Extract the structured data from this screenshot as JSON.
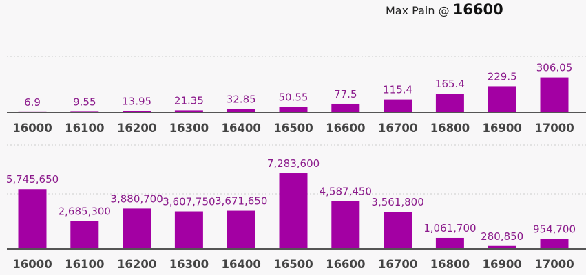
{
  "header": {
    "prefix": "Max Pain @",
    "strike": "16600"
  },
  "colors": {
    "bar": "#a300a3",
    "label": "#8b1a8b",
    "axis": "#555555",
    "grid": "#cccccc",
    "background": "#f8f7f8"
  },
  "chart_data": [
    {
      "type": "bar",
      "categories": [
        "16000",
        "16100",
        "16200",
        "16300",
        "16400",
        "16500",
        "16600",
        "16700",
        "16800",
        "16900",
        "17000"
      ],
      "values": [
        6.9,
        9.55,
        13.95,
        21.35,
        32.85,
        50.55,
        77.5,
        115.4,
        165.4,
        229.5,
        306.05
      ],
      "labels": [
        "6.9",
        "9.55",
        "13.95",
        "21.35",
        "32.85",
        "50.55",
        "77.5",
        "115.4",
        "165.4",
        "229.5",
        "306.05"
      ],
      "ylim": [
        0,
        500
      ],
      "grid": true
    },
    {
      "type": "bar",
      "categories": [
        "16000",
        "16100",
        "16200",
        "16300",
        "16400",
        "16500",
        "16600",
        "16700",
        "16800",
        "16900",
        "17000"
      ],
      "values": [
        5745650,
        2685300,
        3880700,
        3607750,
        3671650,
        7283600,
        4587450,
        3561800,
        1061700,
        280850,
        954700
      ],
      "labels": [
        "5,745,650",
        "2,685,300",
        "3,880,700",
        "3,607,750",
        "3,671,650",
        "7,283,600",
        "4,587,450",
        "3,561,800",
        "1,061,700",
        "280,850",
        "954,700"
      ],
      "ylim": [
        0,
        10000000
      ],
      "grid": true
    }
  ]
}
